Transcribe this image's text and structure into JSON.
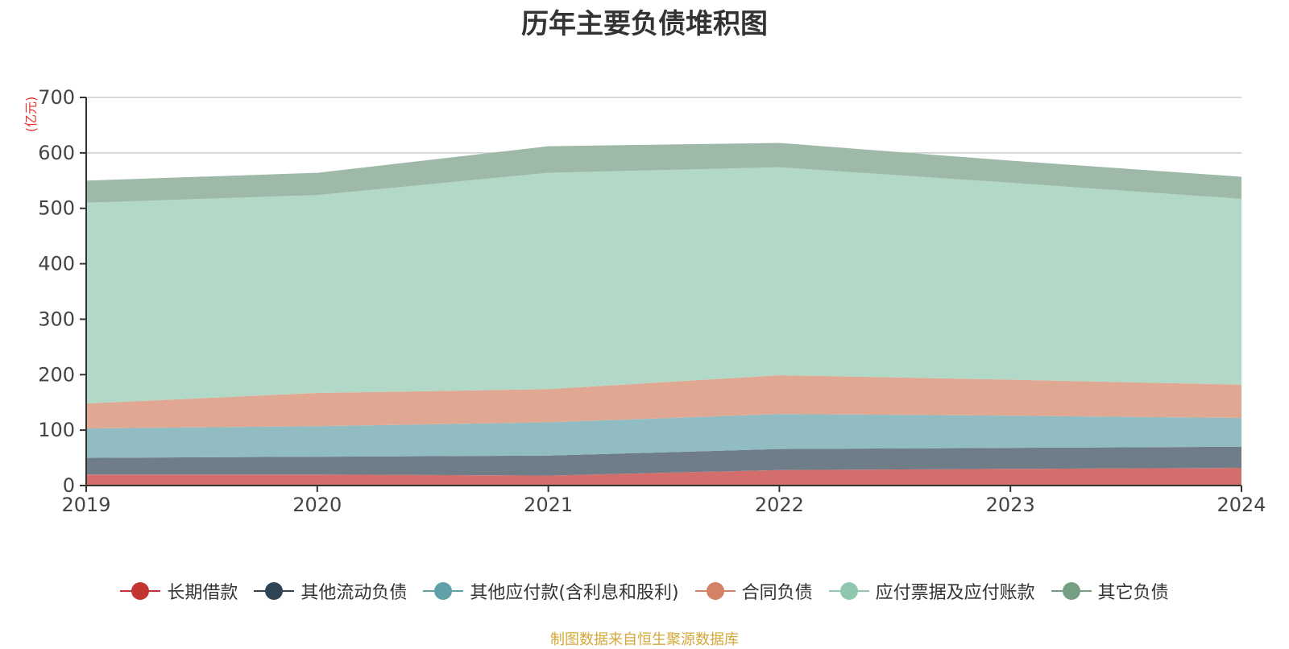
{
  "colors": {
    "axis": "#333333",
    "grid": "#cccccc",
    "unit": "#e8322e",
    "tick_text": "#444444"
  },
  "chart_data": {
    "type": "area",
    "stacked": true,
    "title": "历年主要负债堆积图",
    "unit_label": "(亿元)",
    "x": [
      "2019",
      "2020",
      "2021",
      "2022",
      "2023",
      "2024"
    ],
    "ylim": [
      0,
      700
    ],
    "yticks": [
      0,
      100,
      200,
      300,
      400,
      500,
      600,
      700
    ],
    "grid": true,
    "legend_position": "bottom",
    "source": "制图数据来自恒生聚源数据库",
    "series": [
      {
        "name": "长期借款",
        "values": [
          20,
          20,
          18,
          28,
          30,
          32
        ],
        "color": "#c23531",
        "fill": "#d46e6c"
      },
      {
        "name": "其他流动负债",
        "values": [
          30,
          32,
          36,
          38,
          38,
          38
        ],
        "color": "#2f4554",
        "fill": "#6e7d88"
      },
      {
        "name": "其他应付款(含利息和股利)",
        "values": [
          53,
          55,
          60,
          63,
          58,
          52
        ],
        "color": "#61a0a8",
        "fill": "#90bcc2"
      },
      {
        "name": "合同负债",
        "values": [
          45,
          60,
          60,
          70,
          65,
          60
        ],
        "color": "#d48265",
        "fill": "#e0a893"
      },
      {
        "name": "应付票据及应付账款",
        "values": [
          362,
          357,
          390,
          375,
          355,
          335
        ],
        "color": "#91c7ae",
        "fill": "#b2d9c7"
      },
      {
        "name": "其它负债",
        "values": [
          40,
          40,
          48,
          44,
          40,
          40
        ],
        "color": "#749f83",
        "fill": "#9eb9a8"
      }
    ]
  }
}
